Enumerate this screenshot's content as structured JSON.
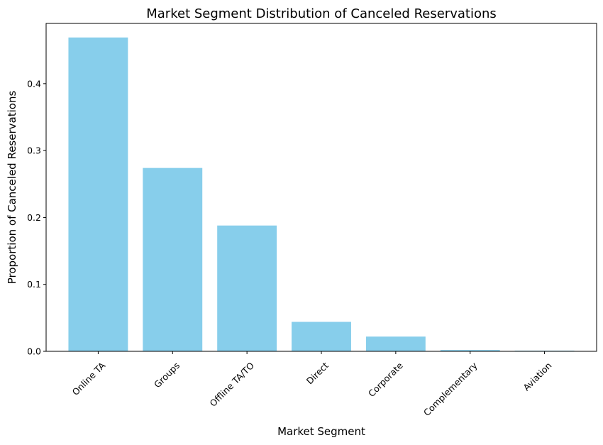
{
  "chart_data": {
    "type": "bar",
    "title": "Market Segment Distribution of Canceled Reservations",
    "xlabel": "Market Segment",
    "ylabel": "Proportion of Canceled Reservations",
    "categories": [
      "Online TA",
      "Groups",
      "Offline TA/TO",
      "Direct",
      "Corporate",
      "Complementary",
      "Aviation"
    ],
    "values": [
      0.469,
      0.274,
      0.188,
      0.044,
      0.022,
      0.002,
      0.001
    ],
    "ylim": [
      0,
      0.49
    ],
    "yticks": [
      0.0,
      0.1,
      0.2,
      0.3,
      0.4
    ],
    "ytick_labels": [
      "0.0",
      "0.1",
      "0.2",
      "0.3",
      "0.4"
    ],
    "grid": false,
    "legend": "none",
    "colors": {
      "bar": "#87CEEB",
      "axis": "#000000",
      "background": "#ffffff"
    }
  }
}
